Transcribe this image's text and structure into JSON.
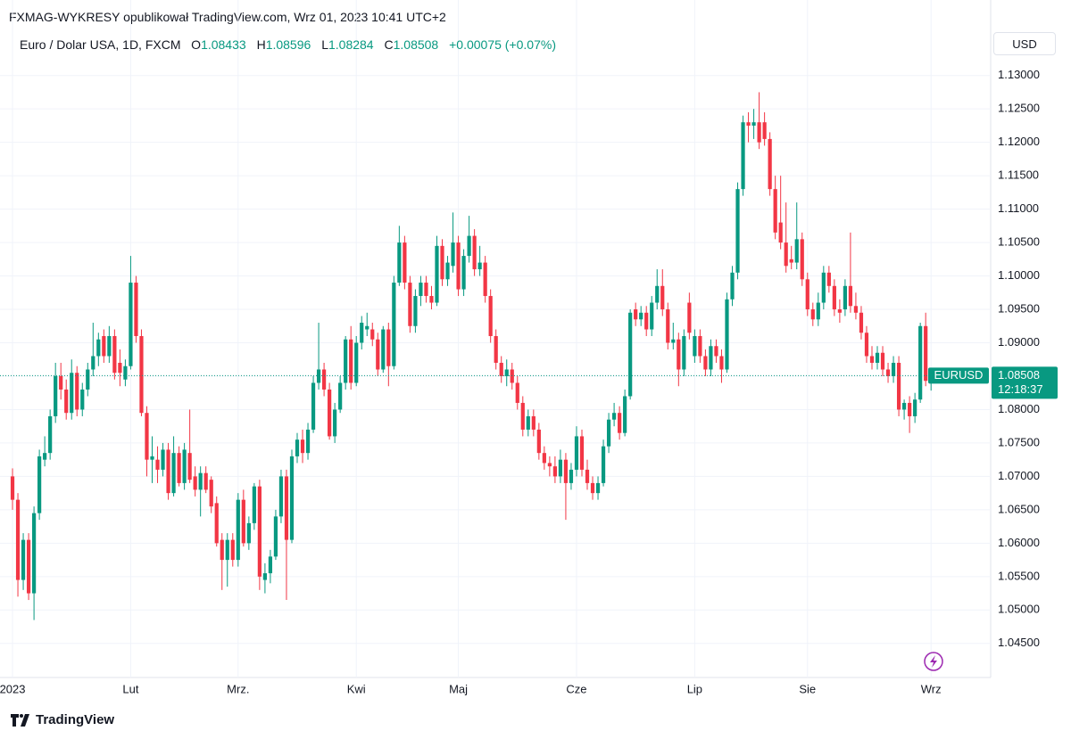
{
  "header": {
    "attribution": "FXMAG-WYKRESY opublikował TradingView.com, Wrz 01, 2023 10:41 UTC+2",
    "symbol": "Euro / Dolar USA, 1D, FXCM",
    "open_label": "O",
    "high_label": "H",
    "low_label": "L",
    "close_label": "C",
    "change": "+0.00075 (+0.07%)",
    "currency": "USD",
    "brand": "TradingView"
  },
  "chart_data": {
    "type": "candlestick",
    "up_color": "#089981",
    "down_color": "#f23645",
    "grid": true,
    "xlim": [
      -2.33,
      182.1
    ],
    "xticks": [
      {
        "value": 0,
        "label": "2023"
      },
      {
        "value": 22,
        "label": "Lut"
      },
      {
        "value": 42,
        "label": "Mrz."
      },
      {
        "value": 64,
        "label": "Kwi"
      },
      {
        "value": 83,
        "label": "Maj"
      },
      {
        "value": 105,
        "label": "Cze"
      },
      {
        "value": 127,
        "label": "Lip"
      },
      {
        "value": 148,
        "label": "Sie"
      },
      {
        "value": 171,
        "label": "Wrz"
      }
    ],
    "ylim": [
      1.0399,
      1.1373
    ],
    "yticks": [
      {
        "value": 1.045,
        "label": "1.04500"
      },
      {
        "value": 1.05,
        "label": "1.05000"
      },
      {
        "value": 1.055,
        "label": "1.05500"
      },
      {
        "value": 1.06,
        "label": "1.06000"
      },
      {
        "value": 1.065,
        "label": "1.06500"
      },
      {
        "value": 1.07,
        "label": "1.07000"
      },
      {
        "value": 1.075,
        "label": "1.07500"
      },
      {
        "value": 1.08,
        "label": "1.08000"
      },
      {
        "value": 1.085,
        "label": "1.08500"
      },
      {
        "value": 1.09,
        "label": "1.09000"
      },
      {
        "value": 1.095,
        "label": "1.09500"
      },
      {
        "value": 1.1,
        "label": "1.10000"
      },
      {
        "value": 1.105,
        "label": "1.10500"
      },
      {
        "value": 1.11,
        "label": "1.11000"
      },
      {
        "value": 1.115,
        "label": "1.11500"
      },
      {
        "value": 1.12,
        "label": "1.12000"
      },
      {
        "value": 1.125,
        "label": "1.12500"
      },
      {
        "value": 1.13,
        "label": "1.13000"
      }
    ],
    "last_price_tag": {
      "symbol": "EURUSD",
      "countdown": "12:18:37"
    },
    "ohlc": [
      [
        1.07,
        1.0712,
        1.065,
        1.0665
      ],
      [
        1.0665,
        1.0675,
        1.052,
        1.0545
      ],
      [
        1.0545,
        1.0615,
        1.053,
        1.0605
      ],
      [
        1.0605,
        1.0615,
        1.0515,
        1.0525
      ],
      [
        1.0525,
        1.0655,
        1.0485,
        1.0645
      ],
      [
        1.0645,
        1.074,
        1.0635,
        1.073
      ],
      [
        1.0725,
        1.076,
        1.0715,
        1.0735
      ],
      [
        1.0735,
        1.08,
        1.0725,
        1.079
      ],
      [
        1.079,
        1.087,
        1.078,
        1.085
      ],
      [
        1.085,
        1.087,
        1.0815,
        1.083
      ],
      [
        1.083,
        1.0845,
        1.0785,
        1.0795
      ],
      [
        1.0795,
        1.0875,
        1.0785,
        1.0855
      ],
      [
        1.0855,
        1.0865,
        1.079,
        1.08
      ],
      [
        1.08,
        1.084,
        1.079,
        1.083
      ],
      [
        1.083,
        1.087,
        1.082,
        1.086
      ],
      [
        1.086,
        1.093,
        1.085,
        1.088
      ],
      [
        1.088,
        1.0915,
        1.0865,
        1.0905
      ],
      [
        1.091,
        1.092,
        1.087,
        1.088
      ],
      [
        1.088,
        1.0925,
        1.087,
        1.091
      ],
      [
        1.091,
        1.092,
        1.0845,
        1.0855
      ],
      [
        1.087,
        1.089,
        1.0835,
        1.0855
      ],
      [
        1.0845,
        1.0875,
        1.0835,
        1.0865
      ],
      [
        1.0865,
        1.103,
        1.086,
        1.099
      ],
      [
        1.099,
        1.1,
        1.09,
        1.091
      ],
      [
        1.091,
        1.092,
        1.079,
        1.0795
      ],
      [
        1.0795,
        1.0805,
        1.07,
        1.0725
      ],
      [
        1.0725,
        1.076,
        1.069,
        1.073
      ],
      [
        1.0725,
        1.0745,
        1.069,
        1.071
      ],
      [
        1.071,
        1.075,
        1.07,
        1.074
      ],
      [
        1.074,
        1.075,
        1.0665,
        1.0675
      ],
      [
        1.0675,
        1.076,
        1.067,
        1.0735
      ],
      [
        1.0735,
        1.0745,
        1.0685,
        1.069
      ],
      [
        1.069,
        1.075,
        1.068,
        1.074
      ],
      [
        1.0735,
        1.08,
        1.069,
        1.0695
      ],
      [
        1.07,
        1.0715,
        1.067,
        1.068
      ],
      [
        1.068,
        1.0715,
        1.064,
        1.0705
      ],
      [
        1.0705,
        1.0715,
        1.0675,
        1.068
      ],
      [
        1.0695,
        1.07,
        1.0645,
        1.0655
      ],
      [
        1.066,
        1.067,
        1.0595,
        1.06
      ],
      [
        1.0605,
        1.0615,
        1.053,
        1.0575
      ],
      [
        1.0575,
        1.0615,
        1.0535,
        1.0605
      ],
      [
        1.0605,
        1.0615,
        1.0565,
        1.0575
      ],
      [
        1.0575,
        1.0675,
        1.0565,
        1.0665
      ],
      [
        1.0665,
        1.068,
        1.0595,
        1.06
      ],
      [
        1.06,
        1.064,
        1.059,
        1.063
      ],
      [
        1.063,
        1.069,
        1.062,
        1.0685
      ],
      [
        1.0685,
        1.0695,
        1.053,
        1.055
      ],
      [
        1.0545,
        1.057,
        1.0525,
        1.0555
      ],
      [
        1.0555,
        1.059,
        1.054,
        1.058
      ],
      [
        1.058,
        1.065,
        1.0575,
        1.064
      ],
      [
        1.064,
        1.071,
        1.063,
        1.07
      ],
      [
        1.07,
        1.071,
        1.0515,
        1.0605
      ],
      [
        1.0605,
        1.074,
        1.06,
        1.073
      ],
      [
        1.073,
        1.0765,
        1.072,
        1.0755
      ],
      [
        1.0755,
        1.077,
        1.072,
        1.0735
      ],
      [
        1.0735,
        1.078,
        1.0725,
        1.077
      ],
      [
        1.077,
        1.085,
        1.0765,
        1.084
      ],
      [
        1.084,
        1.093,
        1.083,
        1.086
      ],
      [
        1.086,
        1.087,
        1.082,
        1.083
      ],
      [
        1.083,
        1.084,
        1.0755,
        1.076
      ],
      [
        1.076,
        1.081,
        1.075,
        1.08
      ],
      [
        1.08,
        1.085,
        1.0795,
        1.084
      ],
      [
        1.084,
        1.091,
        1.083,
        1.0905
      ],
      [
        1.0905,
        1.0925,
        1.083,
        1.084
      ],
      [
        1.084,
        1.091,
        1.0835,
        1.09
      ],
      [
        1.09,
        1.094,
        1.089,
        1.093
      ],
      [
        1.092,
        1.0945,
        1.091,
        1.0925
      ],
      [
        1.092,
        1.093,
        1.0895,
        1.0905
      ],
      [
        1.0905,
        1.0915,
        1.085,
        1.086
      ],
      [
        1.086,
        1.0925,
        1.0855,
        1.092
      ],
      [
        1.092,
        1.093,
        1.0835,
        1.0865
      ],
      [
        1.0865,
        1.1,
        1.086,
        1.099
      ],
      [
        1.099,
        1.1075,
        1.0985,
        1.105
      ],
      [
        1.105,
        1.106,
        1.098,
        1.099
      ],
      [
        1.099,
        1.1,
        1.0915,
        1.0925
      ],
      [
        1.0925,
        1.098,
        1.0915,
        1.097
      ],
      [
        1.097,
        1.1,
        1.0955,
        1.099
      ],
      [
        1.099,
        1.1,
        1.096,
        1.097
      ],
      [
        1.097,
        1.0985,
        1.095,
        1.096
      ],
      [
        1.096,
        1.106,
        1.0955,
        1.1045
      ],
      [
        1.1045,
        1.1055,
        1.0985,
        1.0995
      ],
      [
        1.0995,
        1.103,
        1.0985,
        1.102
      ],
      [
        1.1015,
        1.1095,
        1.1005,
        1.105
      ],
      [
        1.105,
        1.106,
        1.097,
        1.098
      ],
      [
        1.098,
        1.104,
        1.097,
        1.103
      ],
      [
        1.103,
        1.109,
        1.102,
        1.106
      ],
      [
        1.106,
        1.107,
        1.1,
        1.101
      ],
      [
        1.101,
        1.1045,
        1.1,
        1.102
      ],
      [
        1.102,
        1.103,
        1.096,
        1.097
      ],
      [
        1.097,
        1.098,
        1.09,
        1.091
      ],
      [
        1.091,
        1.092,
        1.086,
        1.087
      ],
      [
        1.087,
        1.088,
        1.084,
        1.085
      ],
      [
        1.085,
        1.0875,
        1.0835,
        1.086
      ],
      [
        1.086,
        1.087,
        1.083,
        1.084
      ],
      [
        1.084,
        1.085,
        1.08,
        1.081
      ],
      [
        1.081,
        1.082,
        1.076,
        1.077
      ],
      [
        1.077,
        1.08,
        1.076,
        1.079
      ],
      [
        1.079,
        1.08,
        1.076,
        1.077
      ],
      [
        1.077,
        1.078,
        1.0725,
        1.0735
      ],
      [
        1.0735,
        1.0745,
        1.071,
        1.072
      ],
      [
        1.072,
        1.073,
        1.07,
        1.0715
      ],
      [
        1.0715,
        1.073,
        1.069,
        1.07
      ],
      [
        1.07,
        1.074,
        1.069,
        1.0725
      ],
      [
        1.0725,
        1.0735,
        1.0635,
        1.069
      ],
      [
        1.069,
        1.072,
        1.068,
        1.071
      ],
      [
        1.071,
        1.0775,
        1.07,
        1.076
      ],
      [
        1.076,
        1.077,
        1.07,
        1.071
      ],
      [
        1.071,
        1.0725,
        1.068,
        1.069
      ],
      [
        1.069,
        1.07,
        1.0665,
        1.0675
      ],
      [
        1.0675,
        1.07,
        1.0665,
        1.069
      ],
      [
        1.069,
        1.0755,
        1.0685,
        1.0745
      ],
      [
        1.0745,
        1.0795,
        1.0735,
        1.0785
      ],
      [
        1.0785,
        1.081,
        1.0775,
        1.0795
      ],
      [
        1.0795,
        1.0805,
        1.0755,
        1.0765
      ],
      [
        1.0765,
        1.083,
        1.076,
        1.082
      ],
      [
        1.082,
        1.095,
        1.0815,
        1.0945
      ],
      [
        1.095,
        1.096,
        1.0925,
        1.0935
      ],
      [
        1.0935,
        1.0955,
        1.0925,
        1.0945
      ],
      [
        1.0945,
        1.0955,
        1.091,
        1.092
      ],
      [
        1.092,
        1.097,
        1.091,
        1.096
      ],
      [
        1.096,
        1.101,
        1.095,
        1.0985
      ],
      [
        1.0985,
        1.101,
        1.094,
        1.095
      ],
      [
        1.095,
        1.096,
        1.089,
        1.09
      ],
      [
        1.09,
        1.093,
        1.089,
        1.0905
      ],
      [
        1.0905,
        1.0915,
        1.0835,
        1.086
      ],
      [
        1.086,
        1.092,
        1.085,
        1.091
      ],
      [
        1.096,
        1.0975,
        1.0905,
        1.0915
      ],
      [
        1.088,
        1.092,
        1.087,
        1.091
      ],
      [
        1.091,
        1.092,
        1.087,
        1.088
      ],
      [
        1.088,
        1.089,
        1.085,
        1.086
      ],
      [
        1.086,
        1.0905,
        1.085,
        1.0895
      ],
      [
        1.0895,
        1.0905,
        1.087,
        1.088
      ],
      [
        1.088,
        1.089,
        1.084,
        1.086
      ],
      [
        1.086,
        1.0975,
        1.0855,
        1.0965
      ],
      [
        1.0965,
        1.1015,
        1.0955,
        1.1005
      ],
      [
        1.1005,
        1.114,
        1.0995,
        1.113
      ],
      [
        1.113,
        1.124,
        1.112,
        1.123
      ],
      [
        1.123,
        1.1245,
        1.12,
        1.1225
      ],
      [
        1.1225,
        1.125,
        1.1205,
        1.123
      ],
      [
        1.123,
        1.1275,
        1.119,
        1.12
      ],
      [
        1.123,
        1.1245,
        1.1195,
        1.1205
      ],
      [
        1.1205,
        1.1215,
        1.112,
        1.113
      ],
      [
        1.113,
        1.115,
        1.1055,
        1.1065
      ],
      [
        1.108,
        1.115,
        1.104,
        1.105
      ],
      [
        1.105,
        1.111,
        1.1005,
        1.1015
      ],
      [
        1.1025,
        1.1045,
        1.101,
        1.102
      ],
      [
        1.102,
        1.111,
        1.101,
        1.1055
      ],
      [
        1.1055,
        1.1065,
        1.0985,
        1.0995
      ],
      [
        1.0995,
        1.1005,
        1.094,
        1.095
      ],
      [
        1.095,
        1.096,
        1.0925,
        1.0935
      ],
      [
        1.0935,
        1.0975,
        1.0925,
        1.096
      ],
      [
        1.096,
        1.1015,
        1.095,
        1.1005
      ],
      [
        1.1005,
        1.1015,
        1.0975,
        1.0985
      ],
      [
        1.0985,
        1.0995,
        1.094,
        1.095
      ],
      [
        1.095,
        1.0965,
        1.093,
        1.0945
      ],
      [
        1.095,
        1.0995,
        1.094,
        1.0985
      ],
      [
        1.0985,
        1.1065,
        1.0945,
        1.0955
      ],
      [
        1.0955,
        1.0975,
        1.0935,
        1.0945
      ],
      [
        1.0945,
        1.0955,
        1.0905,
        1.0915
      ],
      [
        1.0915,
        1.0925,
        1.087,
        1.088
      ],
      [
        1.088,
        1.0895,
        1.086,
        1.087
      ],
      [
        1.087,
        1.0895,
        1.086,
        1.0885
      ],
      [
        1.0885,
        1.0895,
        1.085,
        1.086
      ],
      [
        1.086,
        1.087,
        1.084,
        1.085
      ],
      [
        1.085,
        1.088,
        1.084,
        1.087
      ],
      [
        1.087,
        1.088,
        1.079,
        1.08
      ],
      [
        1.08,
        1.0815,
        1.0785,
        1.081
      ],
      [
        1.081,
        1.082,
        1.0765,
        1.079
      ],
      [
        1.079,
        1.0825,
        1.078,
        1.0815
      ],
      [
        1.0815,
        1.093,
        1.081,
        1.0925
      ],
      [
        1.0925,
        1.0945,
        1.0835,
        1.0843
      ],
      [
        1.08433,
        1.08596,
        1.08284,
        1.08508
      ]
    ]
  }
}
